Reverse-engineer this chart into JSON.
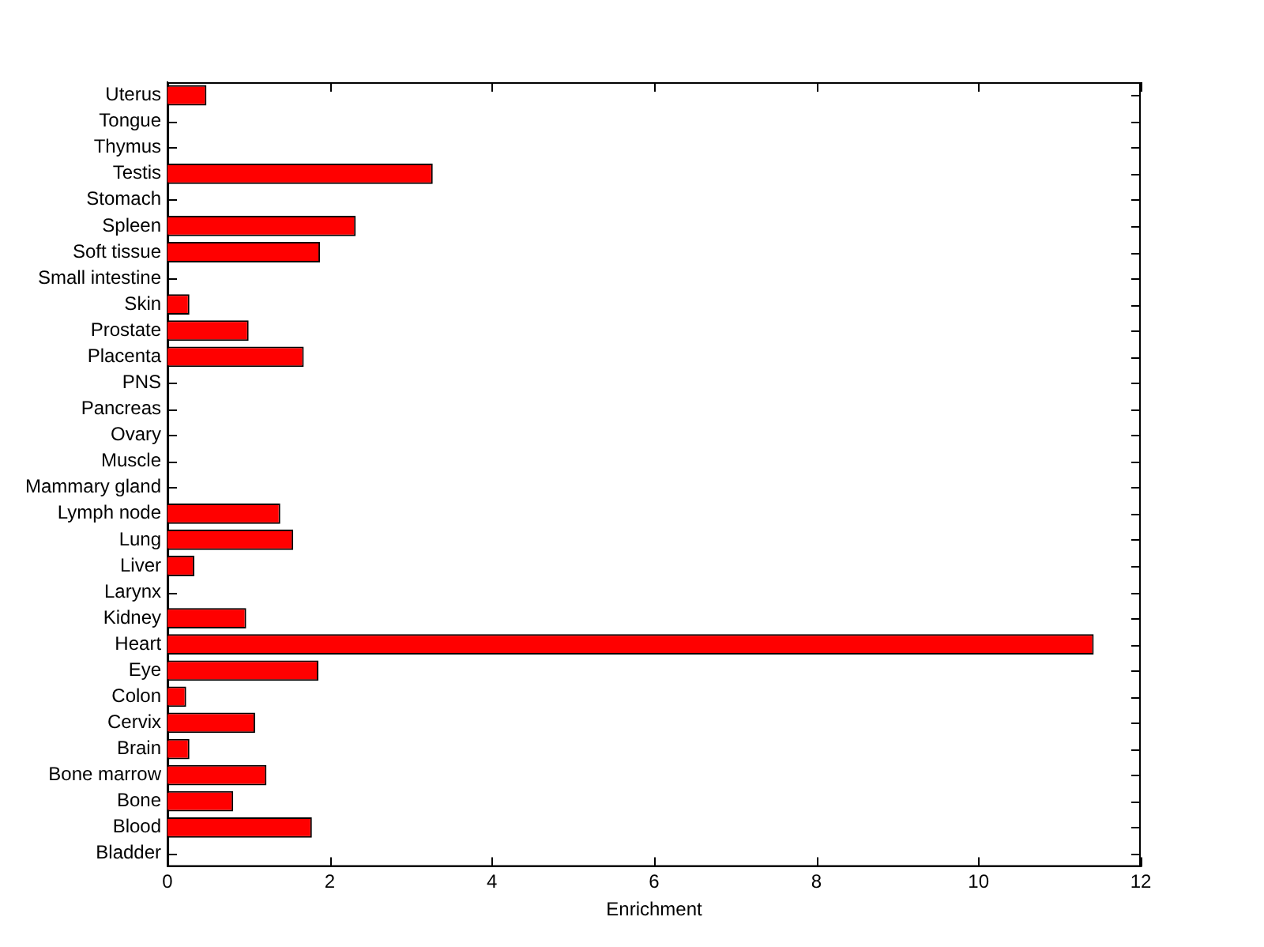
{
  "chart_data": {
    "type": "bar",
    "orientation": "horizontal",
    "xlabel": "Enrichment",
    "categories": [
      "Uterus",
      "Tongue",
      "Thymus",
      "Testis",
      "Stomach",
      "Spleen",
      "Soft tissue",
      "Small intestine",
      "Skin",
      "Prostate",
      "Placenta",
      "PNS",
      "Pancreas",
      "Ovary",
      "Muscle",
      "Mammary gland",
      "Lymph node",
      "Lung",
      "Liver",
      "Larynx",
      "Kidney",
      "Heart",
      "Eye",
      "Colon",
      "Cervix",
      "Brain",
      "Bone marrow",
      "Bone",
      "Blood",
      "Bladder"
    ],
    "values": [
      0.48,
      0,
      0,
      3.27,
      0,
      2.32,
      1.88,
      0,
      0.27,
      1.0,
      1.68,
      0,
      0,
      0,
      0,
      0,
      1.39,
      1.55,
      0.33,
      0,
      0.97,
      11.42,
      1.86,
      0.23,
      1.08,
      0.27,
      1.22,
      0.81,
      1.78,
      0
    ],
    "color": "#ff0000",
    "xlim": [
      0,
      12
    ],
    "xticks": [
      0,
      2,
      4,
      6,
      8,
      10,
      12
    ],
    "grid": false,
    "legend": false
  }
}
